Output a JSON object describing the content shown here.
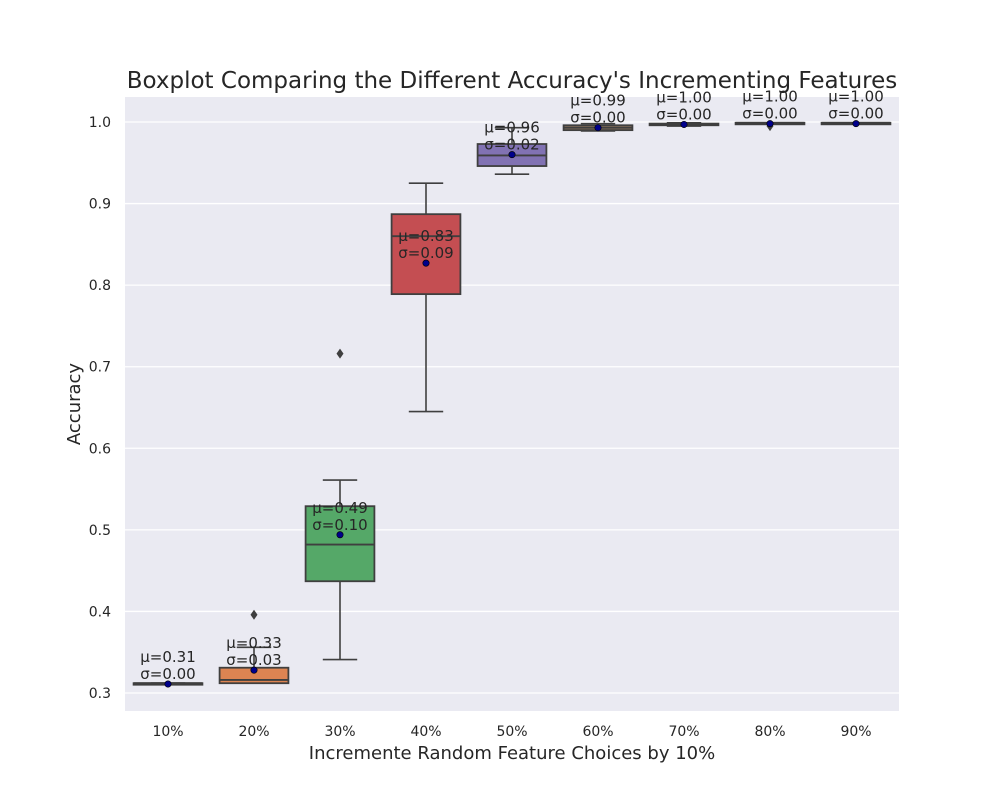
{
  "chart_data": {
    "type": "boxplot",
    "title": "Boxplot Comparing the Different Accuracy's Incrementing Features",
    "xlabel": "Incremente Random Feature Choices by 10%",
    "ylabel": "Accuracy",
    "ylim": [
      0.28,
      1.03
    ],
    "yticks": [
      "0.3",
      "0.4",
      "0.5",
      "0.6",
      "0.7",
      "0.8",
      "0.9",
      "1.0"
    ],
    "grid": true,
    "background": "#eaeaf2",
    "mean_marker_color": "#00008b",
    "categories": [
      "10%",
      "20%",
      "30%",
      "40%",
      "50%",
      "60%",
      "70%",
      "80%",
      "90%"
    ],
    "boxes": [
      {
        "category": "10%",
        "whislo": 0.312,
        "q1": 0.312,
        "med": 0.312,
        "q3": 0.312,
        "whishi": 0.312,
        "mean": 0.311,
        "fliers": [],
        "color": "#4c72b0",
        "mean_label": "μ=0.31",
        "std_label": "σ=0.00"
      },
      {
        "category": "20%",
        "whislo": 0.312,
        "q1": 0.312,
        "med": 0.316,
        "q3": 0.331,
        "whislo2": 0.312,
        "whishi": 0.356,
        "mean": 0.328,
        "fliers": [
          0.396
        ],
        "color": "#dd8452",
        "mean_label": "μ=0.33",
        "std_label": "σ=0.03"
      },
      {
        "category": "30%",
        "whislo": 0.341,
        "q1": 0.437,
        "med": 0.482,
        "q3": 0.529,
        "whishi": 0.561,
        "mean": 0.494,
        "fliers": [
          0.716
        ],
        "color": "#55a868",
        "mean_label": "μ=0.49",
        "std_label": "σ=0.10"
      },
      {
        "category": "40%",
        "whislo": 0.645,
        "q1": 0.789,
        "med": 0.86,
        "q3": 0.887,
        "whishi": 0.925,
        "mean": 0.827,
        "fliers": [],
        "color": "#c44e52",
        "mean_label": "μ=0.83",
        "std_label": "σ=0.09"
      },
      {
        "category": "50%",
        "whislo": 0.936,
        "q1": 0.946,
        "med": 0.959,
        "q3": 0.973,
        "whishi": 0.993,
        "mean": 0.96,
        "fliers": [],
        "color": "#8172b3",
        "mean_label": "μ=0.96",
        "std_label": "σ=0.02"
      },
      {
        "category": "60%",
        "whislo": 0.989,
        "q1": 0.99,
        "med": 0.993,
        "q3": 0.996,
        "whishi": 0.998,
        "mean": 0.993,
        "fliers": [],
        "color": "#937860",
        "mean_label": "μ=0.99",
        "std_label": "σ=0.00"
      },
      {
        "category": "70%",
        "whislo": 0.995,
        "q1": 0.996,
        "med": 0.997,
        "q3": 0.998,
        "whishi": 0.999,
        "mean": 0.997,
        "fliers": [],
        "color": "#da8bc3",
        "mean_label": "μ=1.00",
        "std_label": "σ=0.00"
      },
      {
        "category": "80%",
        "whislo": 0.999,
        "q1": 0.999,
        "med": 0.999,
        "q3": 0.999,
        "whishi": 0.999,
        "mean": 0.998,
        "fliers": [
          0.995
        ],
        "color": "#8c8c8c",
        "mean_label": "μ=1.00",
        "std_label": "σ=0.00"
      },
      {
        "category": "90%",
        "whislo": 0.999,
        "q1": 0.999,
        "med": 0.999,
        "q3": 0.999,
        "whishi": 0.999,
        "mean": 0.998,
        "fliers": [],
        "color": "#ccb974",
        "mean_label": "μ=1.00",
        "std_label": "σ=0.00"
      }
    ]
  }
}
